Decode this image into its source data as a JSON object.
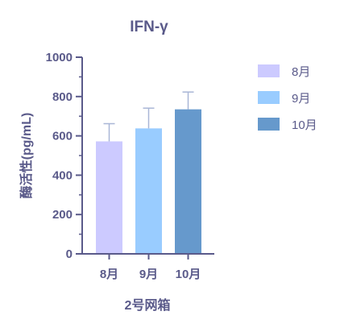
{
  "chart_data": {
    "type": "bar",
    "title": "IFN-γ",
    "xlabel": "2号网箱",
    "ylabel": "酶活性(pg/mL)",
    "categories": [
      "8月",
      "9月",
      "10月"
    ],
    "values": [
      572,
      638,
      735
    ],
    "errors": [
      90,
      103,
      88
    ],
    "colors": [
      "#cccaff",
      "#99ccff",
      "#6699cc"
    ],
    "ylim": [
      0,
      1000
    ],
    "yticks": [
      "0",
      "200",
      "400",
      "600",
      "800",
      "1000"
    ],
    "ytick_values": [
      0,
      200,
      400,
      600,
      800,
      1000
    ],
    "legend": {
      "position": "right",
      "entries": [
        "8月",
        "9月",
        "10月"
      ]
    },
    "axis_color": "#5a5a8a",
    "error_color": "#a9b6d6"
  }
}
